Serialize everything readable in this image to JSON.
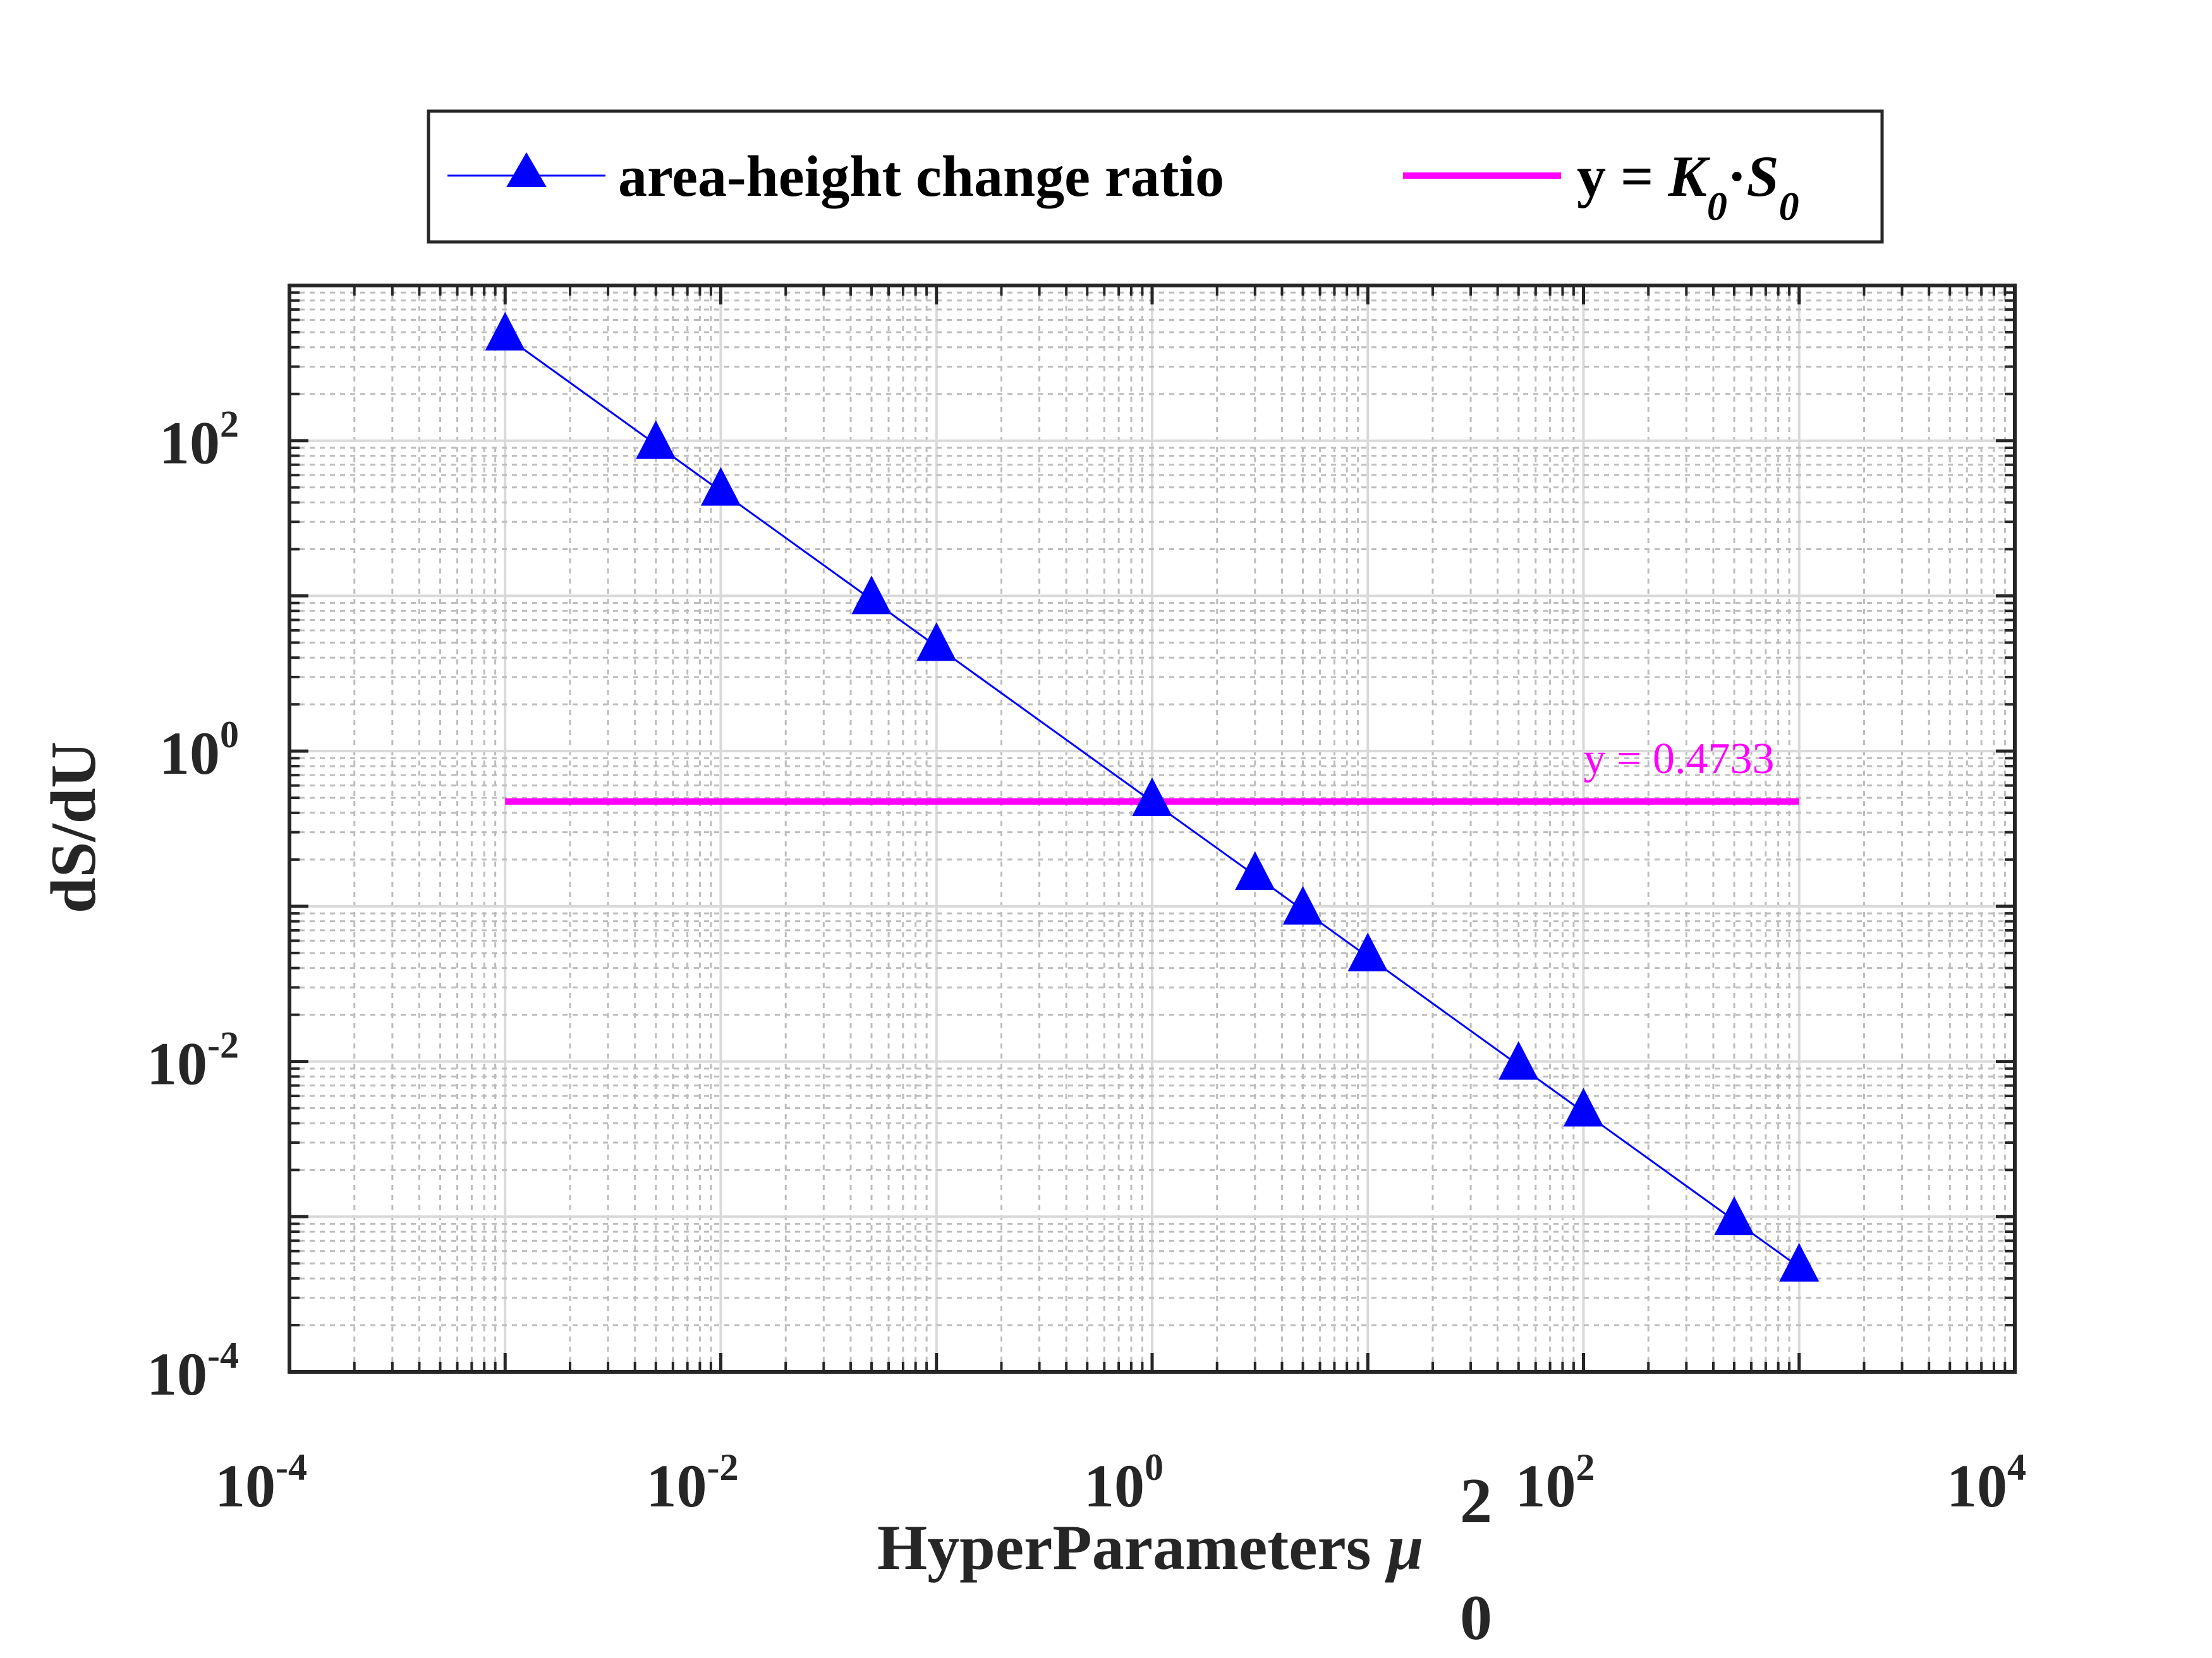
{
  "chart_data": {
    "type": "line",
    "xscale": "log",
    "yscale": "log",
    "xlim": [
      0.0001,
      10000
    ],
    "ylim": [
      0.0001,
      1000
    ],
    "grid": true,
    "minor_grid": true,
    "legend_position": "top",
    "xlabel": "HyperParameters",
    "xlabel_symbol": "μ",
    "xlabel_superscript": "2",
    "xlabel_subscript": "0",
    "ylabel": "dS/dU",
    "x_ticks": [
      {
        "value": 0.0001,
        "base": "10",
        "exp": "-4"
      },
      {
        "value": 0.01,
        "base": "10",
        "exp": "-2"
      },
      {
        "value": 1,
        "base": "10",
        "exp": "0"
      },
      {
        "value": 100,
        "base": "10",
        "exp": "2"
      },
      {
        "value": 10000,
        "base": "10",
        "exp": "4"
      }
    ],
    "y_ticks": [
      {
        "value": 0.0001,
        "base": "10",
        "exp": "-4"
      },
      {
        "value": 0.01,
        "base": "10",
        "exp": "-2"
      },
      {
        "value": 1,
        "base": "10",
        "exp": "0"
      },
      {
        "value": 100,
        "base": "10",
        "exp": "2"
      }
    ],
    "series": [
      {
        "name": "area-height change ratio",
        "color": "#0000ff",
        "marker": "triangle",
        "x": [
          0.001,
          0.005,
          0.01,
          0.05,
          0.1,
          1,
          3,
          5,
          10,
          50,
          100,
          500,
          1000
        ],
        "y": [
          473,
          94.6,
          47.3,
          9.46,
          4.73,
          0.473,
          0.158,
          0.0946,
          0.0473,
          0.00946,
          0.00473,
          0.000946,
          0.000473
        ]
      },
      {
        "name_prefix": "y = ",
        "name_k": "K",
        "name_k_sub": "0",
        "name_mid": "·",
        "name_s": "S",
        "name_s_sub": "0",
        "color": "#ff00ff",
        "x": [
          0.001,
          1000
        ],
        "y": [
          0.4733,
          0.4733
        ]
      }
    ],
    "annotations": [
      {
        "text": "y = 0.4733",
        "x": 100,
        "y": 0.4733,
        "color": "#ff00ff"
      }
    ]
  }
}
